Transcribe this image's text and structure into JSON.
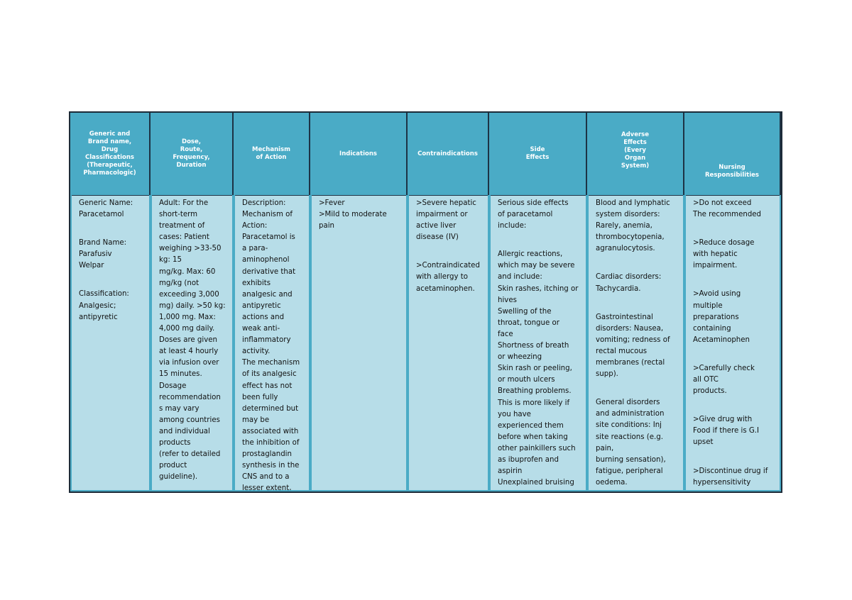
{
  "table": {
    "header": [
      [
        "Generic and",
        "Brand name,",
        "Drug",
        "Classifications",
        "(Therapeutic,",
        "Pharmacologic)"
      ],
      [
        "Dose,",
        "Route,",
        "Frequency,",
        "Duration"
      ],
      [
        "Mechanism",
        "of Action"
      ],
      [
        "Indications"
      ],
      [
        "Contraindications"
      ],
      [
        "Side",
        "Effects"
      ],
      [
        "Adverse",
        "Effects",
        "(Every",
        "Organ",
        "System)"
      ],
      [
        "Nursing",
        "Responsibilities"
      ]
    ],
    "body": [
      [
        [
          "Generic Name:",
          "Paracetamol"
        ],
        [
          "Brand Name:",
          "Parafusiv",
          "Welpar"
        ],
        [
          "Classification:",
          "Analgesic;",
          "antipyretic"
        ]
      ],
      [
        [
          "Adult: For the",
          "short-term",
          "treatment of",
          "cases: Patient",
          "weighing >33-50",
          "kg: 15",
          "mg/kg. Max: 60",
          "mg/kg (not",
          "exceeding 3,000",
          "mg) daily. >50 kg:",
          "1,000 mg. Max:",
          "4,000 mg daily.",
          "Doses are given",
          "at least 4 hourly",
          "via infusion over",
          "15 minutes.",
          "Dosage",
          "recommendation",
          "s may vary",
          "among countries",
          "and individual",
          "products",
          "(refer to detailed",
          "product",
          "guideline)."
        ]
      ],
      [
        [
          "Description:",
          "Mechanism of",
          "Action:",
          "Paracetamol is",
          "a para-",
          "aminophenol",
          "derivative that",
          "exhibits",
          "analgesic and",
          "antipyretic",
          "actions and",
          "weak anti-",
          "inflammatory",
          "activity.",
          "The mechanism",
          "of its analgesic",
          "effect has not",
          "been fully",
          "determined but",
          "may be",
          "associated with",
          "the inhibition of",
          "prostaglandin",
          "synthesis in the",
          "CNS and to a",
          "lesser extent,"
        ]
      ],
      [
        [
          ">Fever",
          ">Mild to moderate",
          "pain"
        ]
      ],
      [
        [
          ">Severe hepatic",
          "impairment or",
          "active liver",
          "disease (IV)"
        ],
        [
          ">Contraindicated",
          "with allergy to",
          "acetaminophen."
        ]
      ],
      [
        [
          "Serious side effects",
          "of paracetamol",
          "include:"
        ],
        [
          "Allergic reactions,",
          "which may be severe",
          "and include:",
          "Skin rashes, itching or",
          "hives",
          "Swelling of the",
          "throat, tongue or",
          "face",
          "Shortness of breath",
          "or wheezing",
          "Skin rash or peeling,",
          "or mouth ulcers",
          "Breathing problems.",
          "This is more likely if",
          "you have",
          "experienced them",
          "before when taking",
          "other painkillers such",
          "as ibuprofen and",
          "aspirin",
          "Unexplained bruising"
        ]
      ],
      [
        [
          "Blood and lymphatic",
          "system disorders:",
          "Rarely, anemia,",
          "thrombocytopenia,",
          "agranulocytosis."
        ],
        [
          "Cardiac disorders:",
          "Tachycardia."
        ],
        [
          "Gastrointestinal",
          "disorders: Nausea,",
          "vomiting; redness of",
          "rectal mucous",
          "membranes (rectal",
          "supp)."
        ],
        [
          "General disorders",
          "and administration",
          "site conditions: Inj",
          "site reactions (e.g.",
          "pain,",
          "burning sensation),",
          "fatigue, peripheral",
          "oedema."
        ]
      ],
      [
        [
          ">Do not exceed",
          "The recommended"
        ],
        [
          ">Reduce dosage",
          "with hepatic",
          "impairment."
        ],
        [
          ">Avoid using",
          "multiple",
          "preparations",
          "containing",
          "Acetaminophen"
        ],
        [
          ">Carefully check",
          "all OTC",
          "products."
        ],
        [
          ">Give drug with",
          "Food if there is G.I",
          "upset"
        ],
        [
          ">Discontinue drug if",
          "hypersensitivity"
        ]
      ]
    ]
  }
}
